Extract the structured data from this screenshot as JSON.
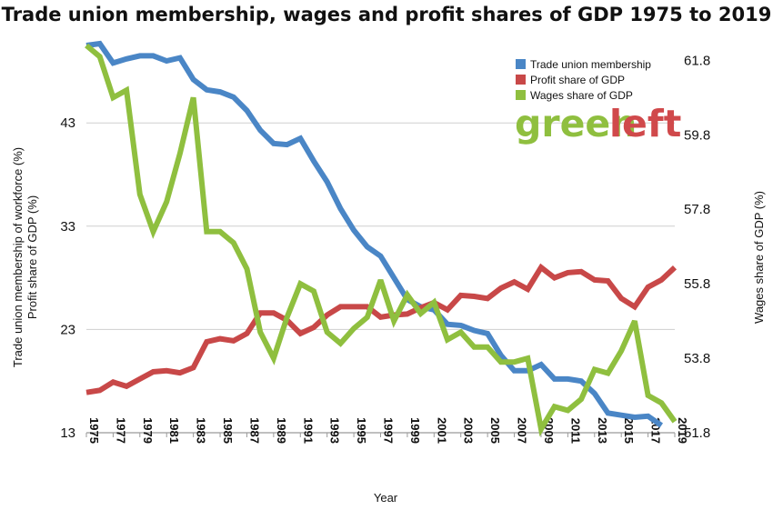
{
  "chart_data": {
    "type": "line",
    "title": "Trade union membership, wages and profit shares of GDP 1975 to 2019",
    "xlabel": "Year",
    "ylabel_left": "Trade union membership of workforce (%) Profit share of GDP (%)",
    "ylabel_left_lines": [
      "Trade union membership of workforce (%)",
      "Profit share of GDP (%)"
    ],
    "ylabel_right": "Wages share of GDP (%)",
    "ylim_left": [
      13,
      50.5
    ],
    "ylim_right": [
      51.8,
      62.2
    ],
    "yticks_left": [
      "13",
      "23",
      "33",
      "43"
    ],
    "yticks_right": [
      "51.8",
      "53.8",
      "55.8",
      "57.8",
      "59.8",
      "61.8"
    ],
    "grid": true,
    "legend_position": "top-right",
    "x": [
      1975,
      1976,
      1977,
      1978,
      1979,
      1980,
      1981,
      1982,
      1983,
      1984,
      1985,
      1986,
      1987,
      1988,
      1989,
      1990,
      1991,
      1992,
      1993,
      1994,
      1995,
      1996,
      1997,
      1998,
      1999,
      2000,
      2001,
      2002,
      2003,
      2004,
      2005,
      2006,
      2007,
      2008,
      2009,
      2010,
      2011,
      2012,
      2013,
      2014,
      2015,
      2016,
      2017,
      2018,
      2019
    ],
    "xticks": [
      "1975",
      "1977",
      "1979",
      "1981",
      "1983",
      "1985",
      "1987",
      "1989",
      "1991",
      "1993",
      "1995",
      "1997",
      "1999",
      "2001",
      "2003",
      "2005",
      "2007",
      "2009",
      "2011",
      "2013",
      "2015",
      "2017",
      "2019"
    ],
    "series": [
      {
        "name": "Trade union membership",
        "color": "#4a86c6",
        "axis": "left",
        "values": [
          50.5,
          51.2,
          48.8,
          49.2,
          49.5,
          49.5,
          49.0,
          49.3,
          47.2,
          46.2,
          46.0,
          45.5,
          44.2,
          42.3,
          41.0,
          40.9,
          41.5,
          39.3,
          37.3,
          34.7,
          32.6,
          31.0,
          30.1,
          28.0,
          25.9,
          25.2,
          24.9,
          23.5,
          23.4,
          22.9,
          22.6,
          20.5,
          19.0,
          19.0,
          19.6,
          18.2,
          18.2,
          18.0,
          16.8,
          14.9,
          14.7,
          14.5,
          14.6,
          13.7,
          null
        ]
      },
      {
        "name": "Profit share of GDP",
        "color": "#c84848",
        "axis": "left",
        "values": [
          16.9,
          17.1,
          17.9,
          17.5,
          18.2,
          18.9,
          19.0,
          18.8,
          19.3,
          21.8,
          22.1,
          21.9,
          22.6,
          24.6,
          24.6,
          23.9,
          22.6,
          23.2,
          24.4,
          25.2,
          25.2,
          25.2,
          24.2,
          24.4,
          24.5,
          25.1,
          25.6,
          24.9,
          26.3,
          26.2,
          26.0,
          27.0,
          27.6,
          26.9,
          29.0,
          28.0,
          28.5,
          28.6,
          27.8,
          27.7,
          26.0,
          25.2,
          27.1,
          27.8,
          29.0
        ]
      },
      {
        "name": "Wages share of GDP",
        "color": "#8fbf3f",
        "axis": "right",
        "values": [
          62.2,
          61.9,
          60.8,
          61.0,
          58.2,
          57.2,
          58.0,
          59.3,
          60.8,
          57.2,
          57.2,
          56.9,
          56.2,
          54.5,
          53.8,
          54.9,
          55.8,
          55.6,
          54.5,
          54.2,
          54.6,
          54.9,
          55.9,
          54.8,
          55.5,
          55.0,
          55.3,
          54.3,
          54.5,
          54.1,
          54.1,
          53.7,
          53.7,
          53.8,
          51.9,
          52.5,
          52.4,
          52.7,
          53.5,
          53.4,
          54.0,
          54.8,
          52.8,
          52.6,
          52.1
        ]
      }
    ]
  },
  "logo": {
    "part1": "green",
    "part2": "left"
  }
}
